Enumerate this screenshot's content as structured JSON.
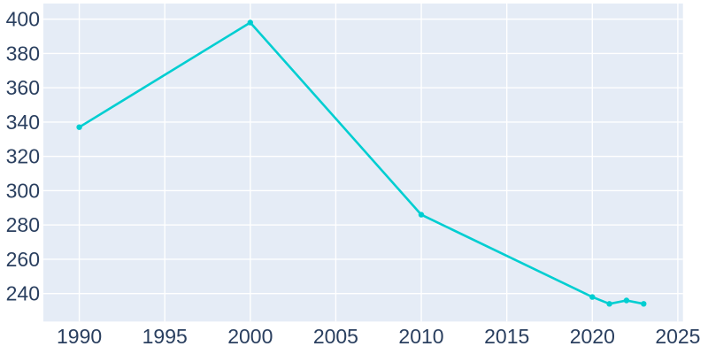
{
  "chart_data": {
    "type": "line",
    "title": "",
    "xlabel": "",
    "ylabel": "",
    "x": [
      1990,
      2000,
      2010,
      2020,
      2021,
      2022,
      2023
    ],
    "values": [
      337,
      398,
      286,
      238,
      234,
      236,
      234
    ],
    "series_name": "population",
    "mode": "lines+markers",
    "xlim": [
      1987.9,
      2025.3
    ],
    "ylim": [
      223.7,
      409.1
    ],
    "xticks": [
      1990,
      1995,
      2000,
      2005,
      2010,
      2015,
      2020,
      2025
    ],
    "xtick_labels": [
      "1990",
      "1995",
      "2000",
      "2005",
      "2010",
      "2015",
      "2020",
      "2025"
    ],
    "yticks": [
      240,
      260,
      280,
      300,
      320,
      340,
      360,
      380,
      400
    ],
    "ytick_labels": [
      "240",
      "260",
      "280",
      "300",
      "320",
      "340",
      "360",
      "380",
      "400"
    ],
    "grid": true,
    "legend": false,
    "colors": {
      "line": "#00CED1",
      "marker": "#00CED1",
      "plot_background": "#E5ECF6",
      "gridline": "#FFFFFF",
      "tick_text": "#2a3f5f",
      "outer_background": "#FFFFFF"
    }
  }
}
